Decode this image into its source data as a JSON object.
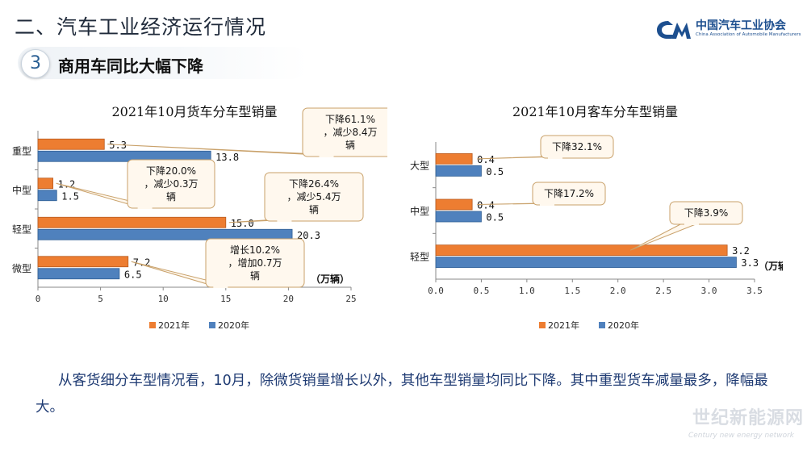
{
  "header": {
    "title": "二、汽车工业经济运行情况",
    "logo_cn": "中国汽车工业协会",
    "logo_en": "China Association of Automobile Manufacturers"
  },
  "section": {
    "number": "3",
    "title": "商用车同比大幅下降"
  },
  "summary": "从客货细分车型情况看，10月，除微货销量增长以外，其他车型销量均同比下降。其中重型货车减量最多，降幅最大。",
  "watermark": {
    "cn": "世纪新能源网",
    "en": "Century new energy network"
  },
  "colors": {
    "y2021": "#ED7D31",
    "y2020": "#4F81BD"
  },
  "chart_data": [
    {
      "type": "bar",
      "orientation": "horizontal",
      "title": "2021年10月货车分车型销量",
      "categories": [
        "重型",
        "中型",
        "轻型",
        "微型"
      ],
      "series": [
        {
          "name": "2021年",
          "values": [
            5.3,
            1.2,
            15.0,
            7.2
          ]
        },
        {
          "name": "2020年",
          "values": [
            13.8,
            1.5,
            20.3,
            6.5
          ]
        }
      ],
      "value_labels": {
        "2021年": [
          "5.3",
          "1.2",
          "15.0",
          "7.2"
        ],
        "2020年": [
          "13.8",
          "1.5",
          "20.3",
          "6.5"
        ]
      },
      "xlim": [
        0,
        25
      ],
      "xticks": [
        "0",
        "5",
        "10",
        "15",
        "20",
        "25"
      ],
      "unit": "（万辆）",
      "legend": "bottom",
      "annotations": [
        {
          "text": "下降61.1%，减少8.4万辆",
          "category": "重型"
        },
        {
          "text": "下降20.0%，减少0.3万辆",
          "category": "中型"
        },
        {
          "text": "下降26.4%，减少5.4万辆",
          "category": "轻型"
        },
        {
          "text": "增长10.2%，增加0.7万辆",
          "category": "微型"
        }
      ]
    },
    {
      "type": "bar",
      "orientation": "horizontal",
      "title": "2021年10月客车分车型销量",
      "categories": [
        "大型",
        "中型",
        "轻型"
      ],
      "series": [
        {
          "name": "2021年",
          "values": [
            0.4,
            0.4,
            3.2
          ]
        },
        {
          "name": "2020年",
          "values": [
            0.5,
            0.5,
            3.3
          ]
        }
      ],
      "value_labels": {
        "2021年": [
          "0.4",
          "0.4",
          "3.2"
        ],
        "2020年": [
          "0.5",
          "0.5",
          "3.3"
        ]
      },
      "xlim": [
        0,
        3.5
      ],
      "xticks": [
        "0.0",
        "0.5",
        "1.0",
        "1.5",
        "2.0",
        "2.5",
        "3.0",
        "3.5"
      ],
      "unit": "（万辆）",
      "legend": "bottom",
      "annotations": [
        {
          "text": "下降32.1%",
          "category": "大型"
        },
        {
          "text": "下降17.2%",
          "category": "中型"
        },
        {
          "text": "下降3.9%",
          "category": "轻型"
        }
      ]
    }
  ]
}
